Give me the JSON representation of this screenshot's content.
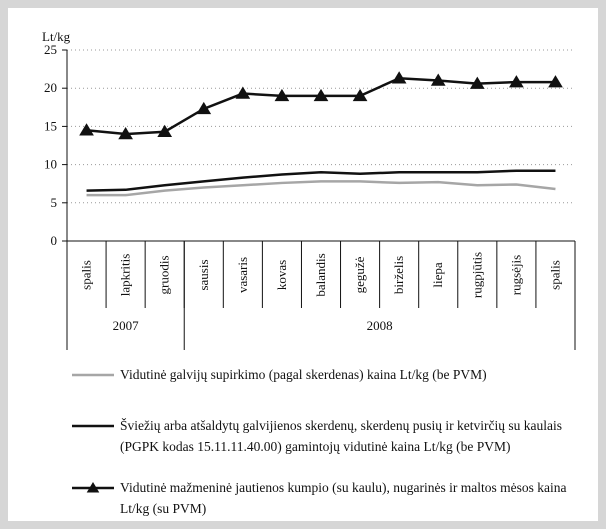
{
  "chart_data": {
    "type": "line",
    "y_label": "Lt/kg",
    "categories": [
      "spalis",
      "lapkritis",
      "gruodis",
      "sausis",
      "vasaris",
      "kovas",
      "balandis",
      "gegužė",
      "birželis",
      "liepa",
      "rugpjūtis",
      "rugsėjis",
      "spalis"
    ],
    "year_groups": [
      {
        "label": "2007",
        "count": 3
      },
      {
        "label": "2008",
        "count": 10
      }
    ],
    "ylim": [
      0,
      25
    ],
    "yticks": [
      0,
      5,
      10,
      15,
      20,
      25
    ],
    "grid": true,
    "series": [
      {
        "name": "Vidutinė galvijų supirkimo (pagal skerdenas) kaina Lt/kg (be PVM)",
        "color": "#a6a6a6",
        "marker": "none",
        "values": [
          6.0,
          6.0,
          6.6,
          7.0,
          7.3,
          7.6,
          7.8,
          7.8,
          7.6,
          7.7,
          7.3,
          7.4,
          6.8
        ]
      },
      {
        "name": "Šviežių arba atšaldytų galvijienos skerdenų, skerdenų pusių ir ketvirčių su kaulais (PGPK kodas 15.11.11.40.00) gamintojų vidutinė kaina Lt/kg (be PVM)",
        "color": "#111111",
        "marker": "none",
        "values": [
          6.6,
          6.7,
          7.3,
          7.8,
          8.3,
          8.7,
          9.0,
          8.8,
          9.0,
          9.0,
          9.0,
          9.2,
          9.2
        ]
      },
      {
        "name": "Vidutinė mažmeninė jautienos kumpio (su kaulu), nugarinės ir maltos mėsos kaina Lt/kg (su PVM)",
        "color": "#111111",
        "marker": "triangle",
        "values": [
          14.5,
          14.0,
          14.3,
          17.3,
          19.3,
          19.0,
          19.0,
          19.0,
          21.3,
          21.0,
          20.6,
          20.8,
          20.8
        ]
      }
    ]
  }
}
